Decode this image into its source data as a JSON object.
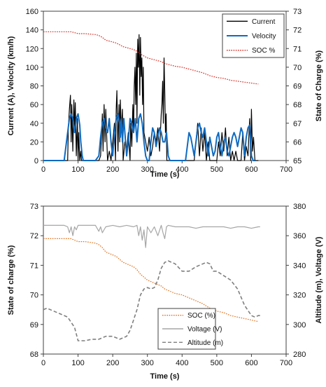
{
  "chart_data": [
    {
      "type": "line",
      "xlabel": "Time (s)",
      "ylabel": "Current (A), Velocity (km/h)",
      "y2label": "State of Charge (%)",
      "xlim": [
        0,
        700
      ],
      "xticks": [
        0,
        100,
        200,
        300,
        400,
        500,
        600,
        700
      ],
      "ylim": [
        0,
        160
      ],
      "yticks": [
        0,
        20,
        40,
        60,
        80,
        100,
        120,
        140,
        160
      ],
      "y2lim": [
        65,
        73
      ],
      "y2ticks": [
        65,
        66,
        67,
        68,
        69,
        70,
        71,
        72,
        73
      ],
      "legend_position": "top-right",
      "series": [
        {
          "name": "Current",
          "axis": "left",
          "color": "#000000",
          "style": "solid",
          "x": [
            0,
            8,
            15,
            20,
            25,
            30,
            35,
            40,
            45,
            50,
            55,
            60,
            65,
            70,
            72,
            75,
            78,
            80,
            82,
            85,
            88,
            90,
            92,
            95,
            98,
            100,
            102,
            105,
            108,
            110,
            115,
            120,
            130,
            140,
            150,
            160,
            165,
            168,
            170,
            172,
            175,
            178,
            180,
            185,
            190,
            195,
            200,
            205,
            208,
            210,
            212,
            215,
            218,
            220,
            222,
            225,
            228,
            230,
            235,
            240,
            245,
            250,
            252,
            255,
            258,
            260,
            262,
            264,
            266,
            268,
            270,
            272,
            274,
            276,
            278,
            280,
            282,
            284,
            286,
            288,
            290,
            295,
            300,
            305,
            310,
            315,
            320,
            325,
            330,
            335,
            340,
            342,
            344,
            346,
            348,
            350,
            352,
            354,
            356,
            360,
            365,
            370,
            380,
            390,
            400,
            405,
            410,
            415,
            420,
            425,
            430,
            435,
            440,
            445,
            450,
            455,
            460,
            465,
            470,
            475,
            480,
            490,
            500,
            505,
            510,
            515,
            520,
            525,
            530,
            535,
            540,
            545,
            550,
            555,
            560,
            565,
            570,
            575,
            580,
            585,
            590,
            595,
            598,
            600,
            603,
            606,
            610,
            615,
            620
          ],
          "y": [
            0,
            0,
            0,
            0,
            0,
            0,
            0,
            0,
            0,
            0,
            0,
            0,
            0,
            0,
            35,
            55,
            70,
            20,
            60,
            10,
            65,
            30,
            62,
            5,
            45,
            0,
            30,
            0,
            10,
            0,
            0,
            0,
            0,
            0,
            0,
            0,
            5,
            30,
            50,
            10,
            60,
            20,
            55,
            0,
            10,
            0,
            20,
            40,
            0,
            55,
            75,
            10,
            60,
            20,
            65,
            30,
            55,
            0,
            20,
            10,
            30,
            0,
            40,
            15,
            60,
            30,
            80,
            100,
            60,
            115,
            40,
            130,
            100,
            135,
            70,
            132,
            90,
            110,
            60,
            100,
            30,
            20,
            10,
            25,
            5,
            15,
            30,
            20,
            35,
            10,
            50,
            60,
            85,
            40,
            110,
            75,
            30,
            50,
            0,
            0,
            0,
            0,
            0,
            0,
            0,
            0,
            0,
            0,
            0,
            0,
            0,
            0,
            20,
            40,
            5,
            35,
            10,
            30,
            0,
            20,
            0,
            0,
            0,
            20,
            5,
            30,
            10,
            35,
            5,
            25,
            0,
            10,
            0,
            10,
            0,
            0,
            0,
            30,
            0,
            15,
            5,
            45,
            0,
            55,
            10,
            25,
            0,
            0,
            0
          ]
        },
        {
          "name": "Velocity",
          "axis": "left",
          "color": "#0F6AC0",
          "style": "solid",
          "x": [
            0,
            10,
            20,
            30,
            40,
            50,
            60,
            65,
            70,
            75,
            80,
            85,
            90,
            95,
            100,
            105,
            108,
            112,
            115,
            120,
            130,
            140,
            150,
            160,
            165,
            170,
            175,
            180,
            185,
            190,
            195,
            200,
            205,
            210,
            215,
            220,
            222,
            225,
            228,
            232,
            235,
            240,
            245,
            250,
            255,
            260,
            265,
            270,
            275,
            280,
            285,
            290,
            295,
            300,
            305,
            310,
            315,
            320,
            325,
            330,
            335,
            340,
            345,
            350,
            355,
            360,
            365,
            370,
            375,
            380,
            385,
            390,
            395,
            400,
            405,
            410,
            415,
            420,
            425,
            430,
            435,
            440,
            445,
            450,
            455,
            460,
            465,
            470,
            475,
            480,
            485,
            490,
            495,
            500,
            505,
            510,
            515,
            520,
            525,
            530,
            535,
            540,
            545,
            550,
            555,
            560,
            565,
            570,
            575,
            580,
            585,
            590,
            595,
            600,
            605,
            610
          ],
          "y": [
            0,
            0,
            0,
            0,
            0,
            0,
            0,
            15,
            30,
            45,
            50,
            45,
            30,
            45,
            50,
            38,
            20,
            5,
            0,
            0,
            0,
            0,
            0,
            5,
            25,
            40,
            45,
            35,
            30,
            45,
            20,
            5,
            30,
            45,
            50,
            40,
            25,
            45,
            20,
            45,
            30,
            5,
            20,
            45,
            40,
            30,
            45,
            20,
            45,
            50,
            40,
            20,
            5,
            0,
            0,
            20,
            35,
            30,
            15,
            25,
            35,
            30,
            20,
            20,
            30,
            5,
            0,
            0,
            0,
            0,
            0,
            0,
            0,
            0,
            0,
            0,
            15,
            30,
            25,
            15,
            5,
            20,
            35,
            40,
            30,
            25,
            35,
            20,
            5,
            25,
            15,
            5,
            10,
            25,
            30,
            15,
            5,
            20,
            25,
            10,
            5,
            15,
            25,
            30,
            25,
            15,
            25,
            35,
            30,
            5,
            25,
            35,
            38,
            5,
            0,
            0
          ]
        },
        {
          "name": "SOC %",
          "axis": "right",
          "color": "#D9261C",
          "style": "dotted",
          "x": [
            0,
            10,
            20,
            40,
            60,
            80,
            90,
            100,
            120,
            150,
            160,
            170,
            180,
            200,
            210,
            220,
            230,
            240,
            250,
            260,
            270,
            280,
            290,
            300,
            310,
            320,
            330,
            340,
            350,
            360,
            370,
            380,
            400,
            420,
            440,
            460,
            480,
            500,
            520,
            540,
            560,
            580,
            600,
            610,
            620
          ],
          "y": [
            71.9,
            71.9,
            71.9,
            71.9,
            71.9,
            71.9,
            71.85,
            71.8,
            71.8,
            71.75,
            71.7,
            71.6,
            71.45,
            71.35,
            71.3,
            71.2,
            71.1,
            71.05,
            71.0,
            70.95,
            70.85,
            70.7,
            70.6,
            70.5,
            70.45,
            70.4,
            70.35,
            70.3,
            70.2,
            70.15,
            70.1,
            70.05,
            70.0,
            69.9,
            69.8,
            69.7,
            69.55,
            69.45,
            69.4,
            69.3,
            69.25,
            69.2,
            69.15,
            69.12,
            69.1
          ]
        }
      ]
    },
    {
      "type": "line",
      "xlabel": "Time (s)",
      "ylabel": "State of charge (%)",
      "y2label": "Altitude (m), Voltage (V)",
      "xlim": [
        0,
        700
      ],
      "xticks": [
        0,
        100,
        200,
        300,
        400,
        500,
        600,
        700
      ],
      "ylim": [
        68,
        73
      ],
      "yticks": [
        68,
        69,
        70,
        71,
        72,
        73
      ],
      "y2lim": [
        280,
        380
      ],
      "y2ticks": [
        280,
        300,
        320,
        340,
        360,
        380
      ],
      "legend_position": "bottom-center",
      "series": [
        {
          "name": "SOC (%)",
          "axis": "left",
          "color": "#E0701C",
          "style": "dotted",
          "x": [
            0,
            10,
            20,
            40,
            60,
            80,
            90,
            100,
            120,
            150,
            160,
            170,
            180,
            200,
            210,
            220,
            230,
            240,
            250,
            260,
            270,
            280,
            290,
            300,
            310,
            320,
            330,
            340,
            350,
            360,
            370,
            380,
            400,
            420,
            440,
            460,
            480,
            500,
            520,
            540,
            560,
            580,
            600,
            610,
            620
          ],
          "y": [
            71.9,
            71.9,
            71.9,
            71.9,
            71.9,
            71.9,
            71.85,
            71.8,
            71.8,
            71.75,
            71.7,
            71.6,
            71.45,
            71.35,
            71.3,
            71.2,
            71.1,
            71.05,
            71.0,
            70.95,
            70.85,
            70.7,
            70.6,
            70.5,
            70.45,
            70.4,
            70.35,
            70.3,
            70.2,
            70.15,
            70.1,
            70.05,
            70.0,
            69.9,
            69.8,
            69.7,
            69.55,
            69.45,
            69.4,
            69.3,
            69.25,
            69.2,
            69.15,
            69.12,
            69.1
          ]
        },
        {
          "name": "Voltage (V)",
          "axis": "right",
          "color": "#A6A6A6",
          "style": "solid",
          "x": [
            0,
            20,
            40,
            60,
            70,
            75,
            80,
            85,
            90,
            95,
            100,
            110,
            130,
            150,
            160,
            165,
            170,
            180,
            200,
            220,
            240,
            260,
            270,
            275,
            280,
            285,
            290,
            295,
            300,
            310,
            320,
            330,
            340,
            345,
            350,
            355,
            360,
            380,
            400,
            420,
            440,
            460,
            480,
            500,
            520,
            540,
            560,
            580,
            600,
            620,
            625
          ],
          "y": [
            367,
            367,
            367,
            367,
            366,
            362,
            366,
            360,
            366,
            364,
            367,
            367,
            367,
            367,
            363,
            366,
            362,
            366,
            367,
            366,
            367,
            366,
            367,
            360,
            366,
            357,
            364,
            352,
            366,
            362,
            366,
            360,
            367,
            362,
            358,
            366,
            367,
            366,
            366,
            366,
            365,
            366,
            366,
            366,
            366,
            365,
            366,
            366,
            365,
            366,
            366
          ]
        },
        {
          "name": "Altitude (m)",
          "axis": "right",
          "color": "#7F7F7F",
          "style": "dashed",
          "x": [
            0,
            10,
            30,
            50,
            70,
            90,
            100,
            120,
            140,
            160,
            180,
            200,
            220,
            240,
            250,
            260,
            270,
            280,
            290,
            300,
            310,
            320,
            330,
            340,
            350,
            360,
            380,
            400,
            420,
            440,
            460,
            470,
            480,
            490,
            500,
            520,
            540,
            560,
            580,
            600,
            610,
            620,
            625
          ],
          "y": [
            310,
            311,
            309,
            307,
            305,
            298,
            289,
            289,
            290,
            290,
            292,
            292,
            290,
            292,
            296,
            303,
            310,
            320,
            324,
            325,
            324,
            325,
            330,
            338,
            342,
            343,
            341,
            336,
            336,
            339,
            341,
            342,
            341,
            336,
            336,
            333,
            330,
            324,
            313,
            306,
            305,
            306,
            306
          ]
        }
      ]
    }
  ]
}
